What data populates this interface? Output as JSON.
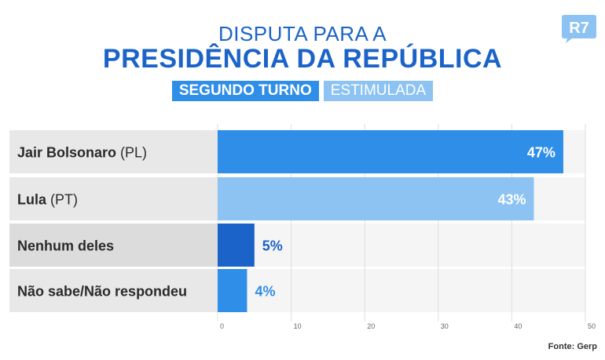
{
  "header": {
    "title_line1": "DISPUTA PARA A",
    "title_line2": "PRESIDÊNCIA DA REPÚBLICA",
    "tag_primary": "SEGUNDO TURNO",
    "tag_secondary": "ESTIMULADA"
  },
  "logo": {
    "text": "R7",
    "color": "#8cc3f3"
  },
  "footer": {
    "source": "Fonte: Gerp"
  },
  "chart_data": {
    "type": "bar",
    "orientation": "horizontal",
    "title": "",
    "categories": [
      {
        "name": "Jair Bolsonaro",
        "party": "(PL)"
      },
      {
        "name": "Lula",
        "party": "(PT)"
      },
      {
        "name": "Nenhum deles",
        "party": ""
      },
      {
        "name": "Não sabe/Não respondeu",
        "party": ""
      }
    ],
    "values": [
      47,
      43,
      5,
      4
    ],
    "value_labels": [
      "47%",
      "43%",
      "5%",
      "4%"
    ],
    "bar_colors": [
      "#2e8ee8",
      "#8cc3f3",
      "#1b63c8",
      "#2e8ee8"
    ],
    "label_inside": [
      true,
      true,
      false,
      false
    ],
    "xlim": [
      0,
      50
    ],
    "xticks": [
      0,
      10,
      20,
      30,
      40,
      50
    ],
    "grid": true
  }
}
